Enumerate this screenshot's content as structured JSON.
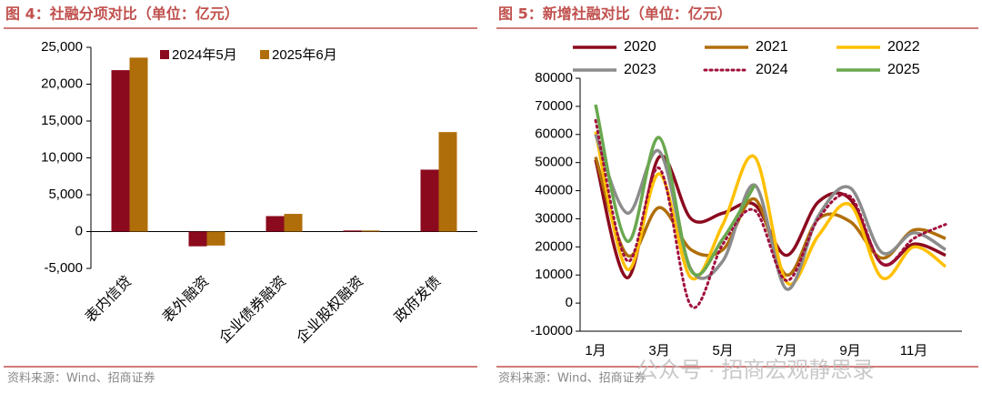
{
  "headers": [
    "图 4：社融分项对比（单位：亿元）",
    "图 5：新增社融对比（单位：亿元）"
  ],
  "sources": [
    "资料来源：Wind、招商证券",
    "资料来源：Wind、招商证券"
  ],
  "watermark": "公众号 · 招商宏观静思录",
  "chart_data": [
    {
      "type": "bar",
      "categories": [
        "表内信贷",
        "表外融资",
        "企业债券融资",
        "企业股权融资",
        "政府发债"
      ],
      "series": [
        {
          "name": "2024年5月",
          "color": "#8b0a1e",
          "values": [
            21900,
            -2000,
            2100,
            150,
            8400
          ]
        },
        {
          "name": "2025年6月",
          "color": "#b06e0a",
          "values": [
            23600,
            -1900,
            2400,
            150,
            13500
          ]
        }
      ],
      "ylim": [
        -5000,
        25000
      ],
      "yticks": [
        {
          "value": -5000,
          "label": "-5,000"
        },
        0,
        {
          "value": 5000,
          "label": "5,000"
        },
        {
          "value": 10000,
          "label": "10,000"
        },
        {
          "value": 15000,
          "label": "15,000"
        },
        {
          "value": 20000,
          "label": "20,000"
        },
        {
          "value": 25000,
          "label": "25,000"
        }
      ]
    },
    {
      "type": "line",
      "categories": [
        "1月",
        null,
        "3月",
        null,
        "5月",
        null,
        "7月",
        null,
        "9月",
        null,
        "11月",
        null
      ],
      "series": [
        {
          "name": "2020",
          "color": "#8b0a1e",
          "values": [
            51000,
            9000,
            52000,
            30000,
            32000,
            35000,
            17000,
            36000,
            37000,
            14000,
            21000,
            17000
          ]
        },
        {
          "name": "2021",
          "color": "#b06e0a",
          "values": [
            52000,
            17000,
            34000,
            19000,
            19000,
            37000,
            10000,
            30000,
            29000,
            16000,
            26000,
            23000
          ]
        },
        {
          "name": "2022",
          "color": "#ffc000",
          "values": [
            61000,
            12000,
            46000,
            9000,
            28000,
            52000,
            7500,
            24000,
            35000,
            9000,
            20000,
            13000
          ]
        },
        {
          "name": "2023",
          "color": "#8c8c8c",
          "values": [
            60000,
            32000,
            54000,
            12000,
            15000,
            42000,
            5000,
            31000,
            41000,
            18000,
            25000,
            19000
          ]
        },
        {
          "name": "2024",
          "color": "#a0103c",
          "dash": true,
          "values": [
            65000,
            15000,
            48000,
            -1000,
            21000,
            33000,
            8000,
            30000,
            38000,
            14000,
            23000,
            28000
          ]
        },
        {
          "name": "2025",
          "color": "#6aa84f",
          "values": [
            70600,
            22000,
            58900,
            11600,
            22900,
            42000,
            null,
            null,
            null,
            null,
            null,
            null
          ]
        }
      ],
      "ylim": [
        -10000,
        80000
      ],
      "yticks": [
        -10000,
        0,
        10000,
        20000,
        30000,
        40000,
        50000,
        60000,
        70000,
        80000
      ]
    }
  ]
}
